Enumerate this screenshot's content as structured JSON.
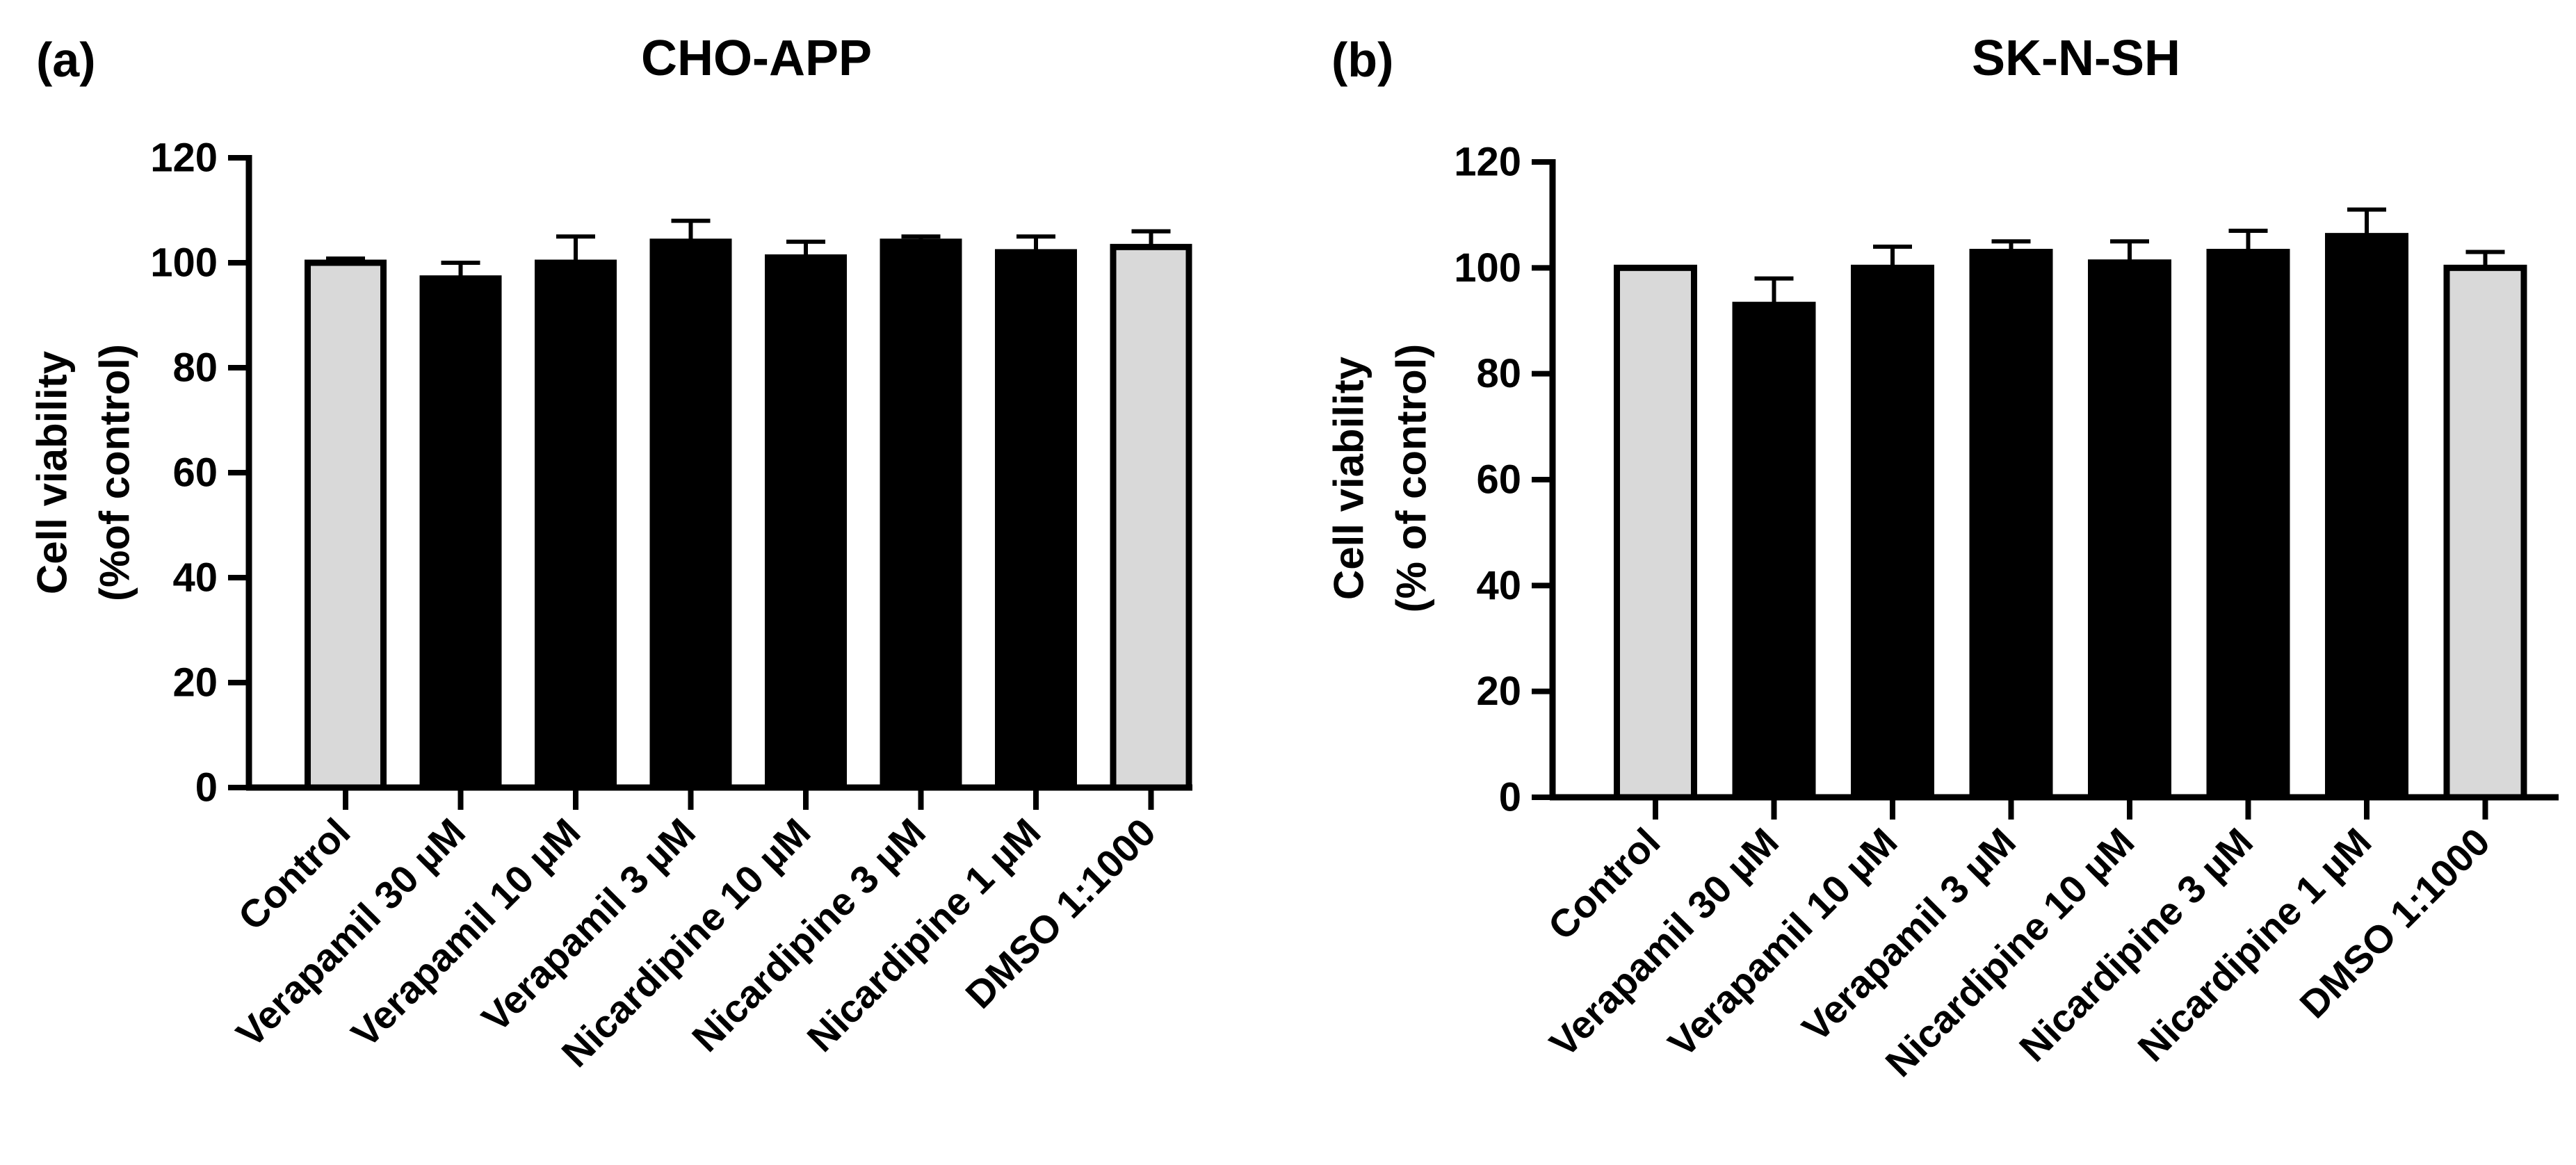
{
  "chart_data": [
    {
      "type": "bar",
      "panel": "(a)",
      "title": "CHO-APP",
      "ylabel": [
        "Cell viability",
        "(%of control)"
      ],
      "xlabel": "",
      "ylim": [
        0,
        120
      ],
      "yticks": [
        0,
        20,
        40,
        60,
        80,
        100,
        120
      ],
      "categories": [
        "Control",
        "Verapamil 30 µM",
        "Verapamil 10 µM",
        "Verapamil 3 µM",
        "Nicardipine 10 µM",
        "Nicardipine 3 µM",
        "Nicardipine 1 µM",
        "DMSO 1:1000"
      ],
      "values": [
        100,
        97,
        100,
        104,
        101,
        104,
        102,
        103
      ],
      "errors": [
        0.8,
        3,
        5,
        4,
        3,
        1,
        3,
        3
      ],
      "bar_colors": [
        "#d9d9d9",
        "#000000",
        "#000000",
        "#000000",
        "#000000",
        "#000000",
        "#000000",
        "#d9d9d9"
      ]
    },
    {
      "type": "bar",
      "panel": "(b)",
      "title": "SK-N-SH",
      "ylabel": [
        "Cell viability",
        "(% of control)"
      ],
      "xlabel": "",
      "ylim": [
        0,
        120
      ],
      "yticks": [
        0,
        20,
        40,
        60,
        80,
        100,
        120
      ],
      "categories": [
        "Control",
        "Verapamil 30 µM",
        "Verapamil 10 µM",
        "Verapamil 3 µM",
        "Nicardipine 10 µM",
        "Nicardipine 3 µM",
        "Nicardipine 1 µM",
        "DMSO 1:1000"
      ],
      "values": [
        100,
        93,
        100,
        103,
        101,
        103,
        106,
        100
      ],
      "errors": [
        0,
        5,
        4,
        2,
        4,
        4,
        5,
        3
      ],
      "bar_colors": [
        "#d9d9d9",
        "#000000",
        "#000000",
        "#000000",
        "#000000",
        "#000000",
        "#000000",
        "#d9d9d9"
      ]
    }
  ]
}
